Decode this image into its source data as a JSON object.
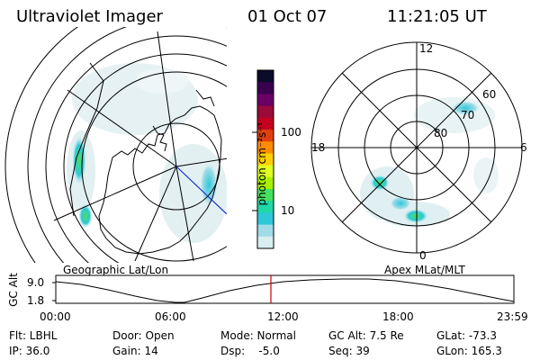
{
  "header": {
    "instrument": "Ultraviolet Imager",
    "date": "01 Oct 07",
    "time": "11:21:05 UT"
  },
  "colorbar": {
    "unit_label": "photon cm⁻²s⁻¹",
    "ticks": [
      "100",
      "10"
    ],
    "colors": [
      "#0b0b2a",
      "#3a0050",
      "#6a0066",
      "#9a0a3a",
      "#c4001e",
      "#e04010",
      "#ff8c00",
      "#ffd000",
      "#e0ff20",
      "#a8f000",
      "#48e060",
      "#20d8a8",
      "#30c8d8",
      "#a0dce8",
      "#d8eef0"
    ]
  },
  "left_panel": {
    "label": "Geographic Lat/Lon"
  },
  "right_panel": {
    "label": "Apex MLat/MLT",
    "mlt_labels": {
      "top": "12",
      "left": "18",
      "right": "6",
      "bottom": "0"
    },
    "lat_labels": [
      "60",
      "70",
      "80"
    ]
  },
  "altitude_plot": {
    "axis_label": "GC Alt",
    "y_ticks": [
      "9.0",
      "1.8"
    ],
    "x_ticks": [
      "00:00",
      "06:00",
      "12:00",
      "18:00",
      "23:59"
    ],
    "current_marker_color": "#cc0000"
  },
  "footer": {
    "filter": "Flt: LBHL",
    "ip": "IP: 36.0",
    "door": "Door: Open",
    "gain": "Gain: 14",
    "mode": "Mode: Normal",
    "dsp": "Dsp:    -5.0",
    "gc_alt": "GC Alt: 7.5 Re",
    "seq": "Seq: 39",
    "glat": "GLat: -73.3",
    "glon": "GLon: 165.3"
  }
}
